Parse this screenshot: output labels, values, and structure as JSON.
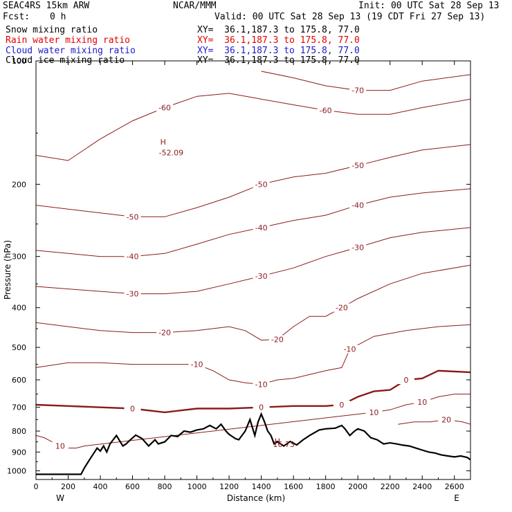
{
  "header": {
    "model": "SEAC4RS 15km ARW",
    "org": "NCAR/MMM",
    "init": "Init: 00 UTC Sat 28 Sep 13",
    "fcst_label": "Fcst:",
    "fcst_value": "0 h",
    "valid": "Valid: 00 UTC Sat 28 Sep 13 (19 CDT Fri 27 Sep 13)",
    "fields": [
      {
        "name": "Snow mixing ratio",
        "xy": "XY=  36.1,187.3 to 175.8, 77.0",
        "color": "#000000"
      },
      {
        "name": "Rain water mixing ratio",
        "xy": "XY=  36.1,187.3 to 175.8, 77.0",
        "color": "#e00000"
      },
      {
        "name": "Cloud water mixing ratio",
        "xy": "XY=  36.1,187.3 to 175.8, 77.0",
        "color": "#1a1acc"
      },
      {
        "name": "Cloud ice mixing ratio",
        "xy": "XY=  36.1,187.3 to 175.8, 77.0",
        "color": "#000000"
      }
    ]
  },
  "colors": {
    "contour": "#8b1a1a",
    "terrain": "#000000",
    "frame": "#000000"
  },
  "chart_data": {
    "type": "line",
    "xlabel": "Distance (km)",
    "ylabel": "Pressure (hPa)",
    "xlim": [
      0,
      2700
    ],
    "ylim": [
      1050,
      100
    ],
    "y_scale": "log-pressure",
    "x_ticks": [
      0,
      200,
      400,
      600,
      800,
      1000,
      1200,
      1400,
      1600,
      1800,
      2000,
      2200,
      2400,
      2600
    ],
    "y_ticks": [
      100,
      200,
      300,
      400,
      500,
      600,
      700,
      800,
      900,
      1000
    ],
    "x_end_labels": {
      "left": "W",
      "right": "E"
    },
    "terrain": {
      "name": "terrain",
      "x": [
        0,
        100,
        200,
        280,
        300,
        340,
        360,
        380,
        400,
        420,
        440,
        460,
        500,
        540,
        560,
        580,
        620,
        660,
        700,
        740,
        760,
        800,
        840,
        880,
        920,
        960,
        1000,
        1040,
        1080,
        1120,
        1150,
        1180,
        1200,
        1240,
        1260,
        1300,
        1330,
        1360,
        1380,
        1400,
        1420,
        1440,
        1460,
        1480,
        1500,
        1540,
        1580,
        1620,
        1660,
        1700,
        1760,
        1800,
        1860,
        1900,
        1920,
        1950,
        1980,
        2000,
        2040,
        2080,
        2120,
        2160,
        2200,
        2240,
        2280,
        2320,
        2360,
        2400,
        2440,
        2480,
        2520,
        2560,
        2600,
        2640,
        2680,
        2700
      ],
      "y": [
        1020,
        1020,
        1020,
        1020,
        985,
        930,
        905,
        880,
        895,
        870,
        900,
        860,
        820,
        870,
        860,
        845,
        818,
        835,
        870,
        840,
        860,
        850,
        820,
        825,
        800,
        805,
        795,
        790,
        775,
        790,
        770,
        800,
        815,
        835,
        840,
        800,
        750,
        820,
        760,
        727,
        760,
        800,
        820,
        860,
        850,
        870,
        848,
        865,
        840,
        820,
        795,
        790,
        787,
        775,
        790,
        820,
        800,
        790,
        800,
        830,
        840,
        860,
        855,
        860,
        866,
        870,
        880,
        890,
        900,
        905,
        915,
        920,
        925,
        920,
        928,
        940
      ]
    },
    "contours": [
      {
        "value": -70,
        "labels": [
          "-70"
        ],
        "x": [
          1400,
          1600,
          1800,
          2000,
          2200,
          2400,
          2700
        ],
        "y": [
          106,
          110,
          115,
          118,
          118,
          112,
          108
        ]
      },
      {
        "value": -60,
        "labels": [
          "-60",
          "-60"
        ],
        "x": [
          0,
          200,
          400,
          600,
          800,
          1000,
          1200,
          1400,
          1600,
          1800,
          2000,
          2200,
          2400,
          2700
        ],
        "y": [
          170,
          175,
          155,
          140,
          130,
          122,
          120,
          124,
          128,
          132,
          135,
          135,
          130,
          124
        ]
      },
      {
        "value": -50,
        "labels": [
          "-50",
          "-50",
          "-50"
        ],
        "x": [
          0,
          200,
          400,
          600,
          800,
          1000,
          1200,
          1400,
          1600,
          1800,
          2000,
          2200,
          2400,
          2700
        ],
        "y": [
          225,
          230,
          235,
          240,
          240,
          228,
          215,
          200,
          192,
          188,
          180,
          172,
          165,
          160
        ]
      },
      {
        "value": -40,
        "labels": [
          "-40",
          "-40",
          "-40"
        ],
        "x": [
          0,
          200,
          400,
          600,
          800,
          1000,
          1200,
          1400,
          1600,
          1800,
          2000,
          2200,
          2400,
          2700
        ],
        "y": [
          290,
          295,
          300,
          300,
          295,
          280,
          265,
          255,
          245,
          238,
          225,
          215,
          210,
          205
        ]
      },
      {
        "value": -30,
        "labels": [
          "-30",
          "-30",
          "-30"
        ],
        "x": [
          0,
          200,
          400,
          600,
          800,
          1000,
          1200,
          1400,
          1600,
          1800,
          2000,
          2200,
          2400,
          2700
        ],
        "y": [
          355,
          360,
          365,
          370,
          370,
          365,
          350,
          335,
          320,
          300,
          285,
          270,
          262,
          255
        ]
      },
      {
        "value": -20,
        "labels": [
          "-20",
          "-20",
          "-20"
        ],
        "x": [
          0,
          200,
          400,
          600,
          800,
          1000,
          1200,
          1300,
          1400,
          1500,
          1600,
          1700,
          1800,
          1900,
          2000,
          2200,
          2400,
          2700
        ],
        "y": [
          435,
          445,
          455,
          460,
          460,
          455,
          445,
          455,
          480,
          478,
          445,
          420,
          420,
          400,
          380,
          350,
          330,
          315
        ]
      },
      {
        "value": -10,
        "labels": [
          "-10",
          "-10",
          "-10"
        ],
        "x": [
          0,
          200,
          400,
          600,
          800,
          1000,
          1100,
          1200,
          1300,
          1400,
          1500,
          1600,
          1800,
          1900,
          1950,
          2100,
          2300,
          2500,
          2700
        ],
        "y": [
          560,
          545,
          545,
          550,
          550,
          550,
          570,
          600,
          610,
          615,
          600,
          595,
          570,
          560,
          505,
          470,
          455,
          445,
          440
        ]
      },
      {
        "value": 0,
        "labels": [
          "0",
          "0",
          "0",
          "0"
        ],
        "x": [
          0,
          200,
          400,
          600,
          800,
          1000,
          1200,
          1400,
          1600,
          1800,
          1900,
          2000,
          2100,
          2200,
          2300,
          2400,
          2500,
          2700
        ],
        "y": [
          690,
          695,
          700,
          705,
          720,
          705,
          705,
          700,
          695,
          695,
          690,
          660,
          640,
          635,
          600,
          595,
          570,
          575
        ]
      },
      {
        "value": 10,
        "labels": [
          "10",
          "10",
          "10"
        ],
        "x": [
          0,
          50,
          100,
          150,
          200,
          250,
          300,
          2100,
          2200,
          2300,
          2400,
          2500,
          2600,
          2700
        ],
        "y": [
          820,
          830,
          850,
          870,
          880,
          880,
          870,
          720,
          710,
          690,
          680,
          660,
          650,
          650
        ]
      },
      {
        "value": 20,
        "labels": [
          "20"
        ],
        "x": [
          2250,
          2350,
          2450,
          2550,
          2650,
          2700
        ],
        "y": [
          770,
          760,
          760,
          750,
          760,
          770
        ]
      }
    ],
    "annotations": [
      {
        "text": "H",
        "x": 790,
        "y": 160
      },
      {
        "text": "-52.09",
        "x": 840,
        "y": 170
      },
      {
        "text": "H",
        "x": 1500,
        "y": 860
      },
      {
        "text": "16.73",
        "x": 1540,
        "y": 875
      }
    ]
  }
}
